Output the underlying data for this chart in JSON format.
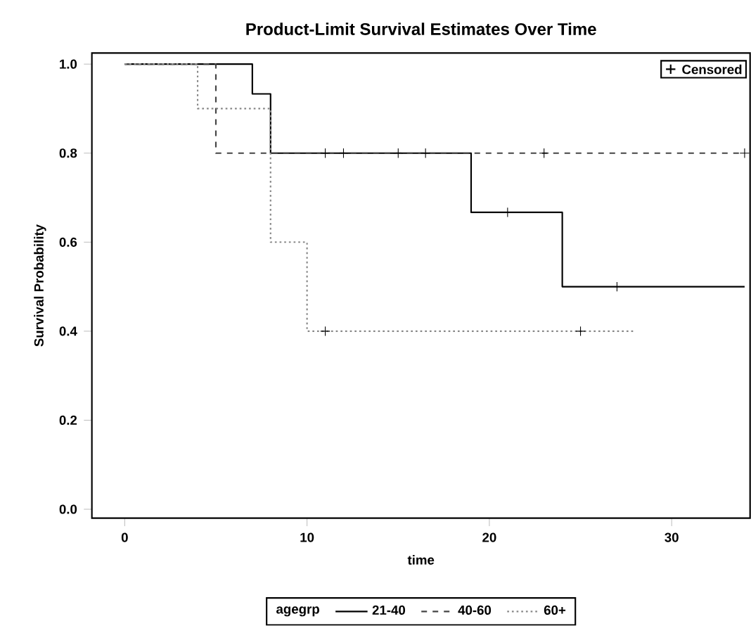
{
  "chart_data": {
    "type": "step",
    "title": "Product-Limit Survival Estimates Over Time",
    "xlabel": "time",
    "ylabel": "Survival Probability",
    "legend_title": "agegrp",
    "legend": "bottom",
    "xlim": [
      -1.8,
      34.3
    ],
    "ylim": [
      -0.02,
      1.025
    ],
    "xticks": [
      0,
      10,
      20,
      30
    ],
    "yticks": [
      {
        "value": 0,
        "label": "0.0"
      },
      0.2,
      0.4,
      0.6,
      0.8,
      {
        "value": 1,
        "label": "1.0"
      }
    ],
    "series": [
      {
        "name": "21-40",
        "color": "#000000",
        "line_style": "solid",
        "x": [
          0,
          7,
          8,
          19,
          24,
          34
        ],
        "values": [
          1.0,
          0.933,
          0.8,
          0.667,
          0.5,
          0.5
        ]
      },
      {
        "name": "40-60",
        "color": "#444444",
        "line_style": "dashed",
        "x": [
          0,
          5,
          34
        ],
        "values": [
          1.0,
          0.8,
          0.8
        ]
      },
      {
        "name": "60+",
        "color": "#888888",
        "line_style": "dotted",
        "x": [
          0,
          4,
          8,
          10,
          28
        ],
        "values": [
          1.0,
          0.9,
          0.6,
          0.4,
          0.4
        ]
      },
      {
        "name": "Censored",
        "type": "scatter",
        "marker": "cross",
        "color": "#000000",
        "x": [
          11,
          12,
          15,
          16.5,
          23,
          34,
          21,
          27,
          11,
          25
        ],
        "values": [
          0.8,
          0.8,
          0.8,
          0.8,
          0.8,
          0.8,
          0.667,
          0.5,
          0.4,
          0.4
        ]
      }
    ]
  }
}
